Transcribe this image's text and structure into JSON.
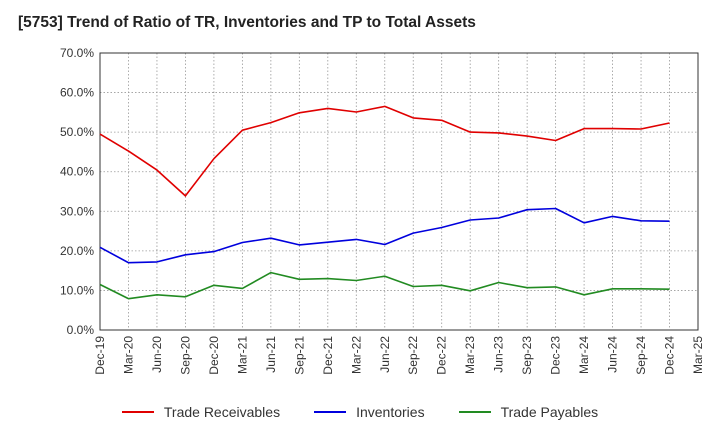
{
  "chart_data": {
    "type": "line",
    "title": "[5753]  Trend of Ratio of TR, Inventories and TP to Total Assets",
    "xlabel": "",
    "ylabel": "",
    "x": [
      "Dec-19",
      "Mar-20",
      "Jun-20",
      "Sep-20",
      "Dec-20",
      "Mar-21",
      "Jun-21",
      "Sep-21",
      "Dec-21",
      "Mar-22",
      "Jun-22",
      "Sep-22",
      "Dec-22",
      "Mar-23",
      "Jun-23",
      "Sep-23",
      "Dec-23",
      "Mar-24",
      "Jun-24",
      "Sep-24",
      "Dec-24",
      "Mar-25"
    ],
    "ylim": [
      0,
      70
    ],
    "yticks": [
      "0.0%",
      "10.0%",
      "20.0%",
      "30.0%",
      "40.0%",
      "50.0%",
      "60.0%",
      "70.0%"
    ],
    "grid": true,
    "legend_position": "bottom",
    "series": [
      {
        "name": "Trade Receivables",
        "color": "#e00000",
        "values": [
          49.5,
          45.2,
          40.4,
          33.9,
          43.3,
          50.5,
          52.4,
          54.9,
          56.0,
          55.1,
          56.5,
          53.6,
          53.0,
          50.0,
          49.8,
          49.0,
          47.9,
          50.9,
          50.9,
          50.8,
          52.3,
          null
        ]
      },
      {
        "name": "Inventories",
        "color": "#0000dd",
        "values": [
          20.9,
          17.0,
          17.2,
          19.0,
          19.8,
          22.1,
          23.2,
          21.5,
          22.2,
          22.9,
          21.6,
          24.5,
          25.9,
          27.8,
          28.3,
          30.4,
          30.7,
          27.1,
          28.7,
          27.6,
          27.5,
          null
        ]
      },
      {
        "name": "Trade Payables",
        "color": "#228b22",
        "values": [
          11.5,
          7.9,
          8.9,
          8.4,
          11.3,
          10.5,
          14.5,
          12.8,
          13.0,
          12.5,
          13.6,
          11.0,
          11.3,
          9.9,
          12.0,
          10.7,
          10.9,
          8.9,
          10.4,
          10.4,
          10.3,
          null
        ]
      }
    ]
  }
}
